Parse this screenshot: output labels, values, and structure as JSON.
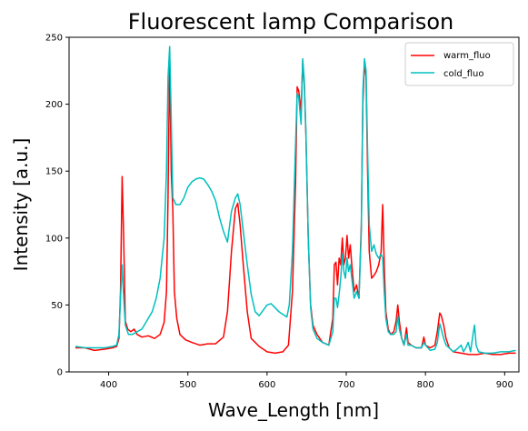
{
  "chart_data": {
    "type": "line",
    "title": "Fluorescent lamp Comparison",
    "xlabel": "Wave_Length [nm]",
    "ylabel": "Intensity [a.u.]",
    "xlim": [
      350,
      918
    ],
    "ylim": [
      0,
      250
    ],
    "xticks": [
      400,
      500,
      600,
      700,
      800,
      900
    ],
    "yticks": [
      0,
      50,
      100,
      150,
      200,
      250
    ],
    "grid": false,
    "legend_position": "top-right",
    "series": [
      {
        "name": "warm_fluo",
        "color": "#ff0000",
        "points": [
          [
            358,
            18
          ],
          [
            370,
            18
          ],
          [
            382,
            16
          ],
          [
            395,
            17
          ],
          [
            405,
            18
          ],
          [
            410,
            19
          ],
          [
            413,
            25
          ],
          [
            415,
            60
          ],
          [
            417,
            146
          ],
          [
            419,
            100
          ],
          [
            421,
            38
          ],
          [
            424,
            32
          ],
          [
            428,
            30
          ],
          [
            432,
            32
          ],
          [
            436,
            28
          ],
          [
            442,
            26
          ],
          [
            450,
            27
          ],
          [
            458,
            25
          ],
          [
            465,
            28
          ],
          [
            470,
            37
          ],
          [
            473,
            60
          ],
          [
            475,
            130
          ],
          [
            477,
            236
          ],
          [
            479,
            150
          ],
          [
            481,
            120
          ],
          [
            483,
            60
          ],
          [
            486,
            40
          ],
          [
            490,
            28
          ],
          [
            497,
            24
          ],
          [
            505,
            22
          ],
          [
            515,
            20
          ],
          [
            525,
            21
          ],
          [
            535,
            21
          ],
          [
            545,
            26
          ],
          [
            550,
            45
          ],
          [
            555,
            90
          ],
          [
            560,
            122
          ],
          [
            563,
            126
          ],
          [
            566,
            110
          ],
          [
            570,
            80
          ],
          [
            575,
            45
          ],
          [
            580,
            25
          ],
          [
            590,
            19
          ],
          [
            600,
            15
          ],
          [
            610,
            14
          ],
          [
            620,
            15
          ],
          [
            627,
            20
          ],
          [
            632,
            60
          ],
          [
            636,
            140
          ],
          [
            638,
            213
          ],
          [
            640,
            210
          ],
          [
            643,
            195
          ],
          [
            645,
            232
          ],
          [
            647,
            215
          ],
          [
            649,
            178
          ],
          [
            652,
            100
          ],
          [
            655,
            50
          ],
          [
            658,
            35
          ],
          [
            663,
            28
          ],
          [
            670,
            22
          ],
          [
            678,
            20
          ],
          [
            683,
            40
          ],
          [
            685,
            80
          ],
          [
            687,
            82
          ],
          [
            689,
            65
          ],
          [
            691,
            85
          ],
          [
            693,
            80
          ],
          [
            695,
            100
          ],
          [
            697,
            80
          ],
          [
            699,
            85
          ],
          [
            701,
            102
          ],
          [
            703,
            85
          ],
          [
            705,
            95
          ],
          [
            707,
            80
          ],
          [
            710,
            60
          ],
          [
            713,
            65
          ],
          [
            716,
            55
          ],
          [
            719,
            110
          ],
          [
            721,
            200
          ],
          [
            723,
            232
          ],
          [
            725,
            220
          ],
          [
            727,
            150
          ],
          [
            729,
            90
          ],
          [
            732,
            70
          ],
          [
            735,
            72
          ],
          [
            738,
            75
          ],
          [
            741,
            80
          ],
          [
            744,
            90
          ],
          [
            746,
            125
          ],
          [
            748,
            80
          ],
          [
            750,
            45
          ],
          [
            753,
            32
          ],
          [
            756,
            28
          ],
          [
            760,
            30
          ],
          [
            763,
            38
          ],
          [
            765,
            50
          ],
          [
            767,
            38
          ],
          [
            770,
            25
          ],
          [
            773,
            20
          ],
          [
            776,
            33
          ],
          [
            778,
            22
          ],
          [
            782,
            20
          ],
          [
            788,
            18
          ],
          [
            795,
            18
          ],
          [
            798,
            26
          ],
          [
            800,
            20
          ],
          [
            806,
            18
          ],
          [
            812,
            20
          ],
          [
            815,
            30
          ],
          [
            818,
            44
          ],
          [
            820,
            42
          ],
          [
            823,
            35
          ],
          [
            826,
            25
          ],
          [
            830,
            18
          ],
          [
            835,
            15
          ],
          [
            845,
            14
          ],
          [
            855,
            13
          ],
          [
            865,
            13
          ],
          [
            875,
            14
          ],
          [
            885,
            13
          ],
          [
            895,
            13
          ],
          [
            905,
            14
          ],
          [
            914,
            14
          ]
        ]
      },
      {
        "name": "cold_fluo",
        "color": "#00bfbf",
        "points": [
          [
            358,
            19
          ],
          [
            370,
            18
          ],
          [
            382,
            18
          ],
          [
            395,
            18
          ],
          [
            405,
            19
          ],
          [
            410,
            20
          ],
          [
            413,
            28
          ],
          [
            415,
            55
          ],
          [
            417,
            80
          ],
          [
            419,
            55
          ],
          [
            421,
            35
          ],
          [
            425,
            28
          ],
          [
            430,
            28
          ],
          [
            436,
            30
          ],
          [
            442,
            32
          ],
          [
            448,
            38
          ],
          [
            455,
            45
          ],
          [
            460,
            55
          ],
          [
            465,
            70
          ],
          [
            470,
            100
          ],
          [
            473,
            150
          ],
          [
            475,
            220
          ],
          [
            477,
            243
          ],
          [
            479,
            190
          ],
          [
            481,
            130
          ],
          [
            485,
            125
          ],
          [
            490,
            125
          ],
          [
            495,
            130
          ],
          [
            500,
            138
          ],
          [
            505,
            142
          ],
          [
            510,
            144
          ],
          [
            515,
            145
          ],
          [
            520,
            144
          ],
          [
            525,
            140
          ],
          [
            530,
            135
          ],
          [
            535,
            128
          ],
          [
            540,
            115
          ],
          [
            545,
            105
          ],
          [
            550,
            97
          ],
          [
            555,
            120
          ],
          [
            560,
            130
          ],
          [
            563,
            133
          ],
          [
            566,
            125
          ],
          [
            570,
            105
          ],
          [
            575,
            80
          ],
          [
            580,
            58
          ],
          [
            585,
            45
          ],
          [
            590,
            42
          ],
          [
            595,
            46
          ],
          [
            600,
            50
          ],
          [
            605,
            51
          ],
          [
            610,
            48
          ],
          [
            615,
            45
          ],
          [
            620,
            43
          ],
          [
            625,
            41
          ],
          [
            628,
            50
          ],
          [
            632,
            90
          ],
          [
            636,
            170
          ],
          [
            638,
            208
          ],
          [
            640,
            205
          ],
          [
            643,
            185
          ],
          [
            645,
            234
          ],
          [
            647,
            218
          ],
          [
            649,
            180
          ],
          [
            652,
            100
          ],
          [
            655,
            48
          ],
          [
            658,
            32
          ],
          [
            663,
            25
          ],
          [
            670,
            22
          ],
          [
            678,
            20
          ],
          [
            683,
            30
          ],
          [
            685,
            55
          ],
          [
            687,
            55
          ],
          [
            689,
            48
          ],
          [
            691,
            58
          ],
          [
            693,
            70
          ],
          [
            695,
            88
          ],
          [
            697,
            75
          ],
          [
            699,
            70
          ],
          [
            701,
            85
          ],
          [
            703,
            75
          ],
          [
            705,
            80
          ],
          [
            707,
            70
          ],
          [
            710,
            55
          ],
          [
            713,
            60
          ],
          [
            716,
            55
          ],
          [
            719,
            105
          ],
          [
            721,
            210
          ],
          [
            723,
            234
          ],
          [
            725,
            225
          ],
          [
            727,
            165
          ],
          [
            729,
            110
          ],
          [
            732,
            90
          ],
          [
            735,
            95
          ],
          [
            738,
            88
          ],
          [
            741,
            85
          ],
          [
            744,
            88
          ],
          [
            746,
            85
          ],
          [
            748,
            60
          ],
          [
            750,
            40
          ],
          [
            753,
            30
          ],
          [
            756,
            28
          ],
          [
            760,
            28
          ],
          [
            763,
            30
          ],
          [
            765,
            42
          ],
          [
            767,
            32
          ],
          [
            770,
            25
          ],
          [
            773,
            20
          ],
          [
            776,
            28
          ],
          [
            778,
            20
          ],
          [
            782,
            20
          ],
          [
            788,
            18
          ],
          [
            795,
            18
          ],
          [
            798,
            22
          ],
          [
            800,
            20
          ],
          [
            806,
            16
          ],
          [
            812,
            17
          ],
          [
            815,
            22
          ],
          [
            818,
            36
          ],
          [
            820,
            32
          ],
          [
            823,
            25
          ],
          [
            826,
            20
          ],
          [
            830,
            18
          ],
          [
            835,
            15
          ],
          [
            840,
            17
          ],
          [
            845,
            20
          ],
          [
            848,
            15
          ],
          [
            851,
            18
          ],
          [
            854,
            22
          ],
          [
            857,
            15
          ],
          [
            860,
            28
          ],
          [
            862,
            35
          ],
          [
            864,
            20
          ],
          [
            867,
            15
          ],
          [
            875,
            14
          ],
          [
            885,
            14
          ],
          [
            895,
            15
          ],
          [
            905,
            15
          ],
          [
            914,
            16
          ]
        ]
      }
    ]
  }
}
